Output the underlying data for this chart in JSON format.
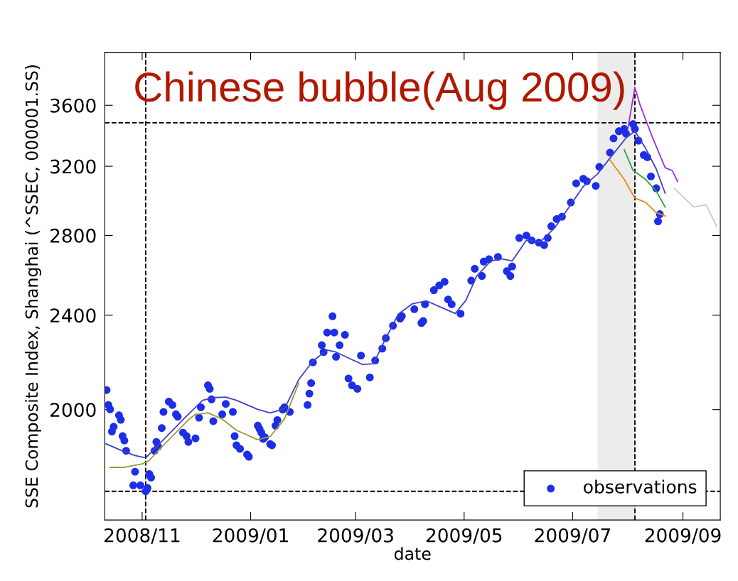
{
  "chart_data": {
    "type": "line",
    "title": "Chinese bubble(Aug 2009)",
    "xlabel": "date",
    "ylabel": "SSE Composite Index, Shanghai (^SSEC, 000001.SS)",
    "log": true,
    "legend": "bottom right",
    "xlim": [
      "2008-10-11",
      "2009-09-22"
    ],
    "xticks": [
      {
        "value": "2008-11",
        "label": "2008/11"
      },
      {
        "value": "2009-01",
        "label": "2009/01"
      },
      {
        "value": "2009-03",
        "label": "2009/03"
      },
      {
        "value": "2009-05",
        "label": "2009/05"
      },
      {
        "value": "2009-07",
        "label": "2009/07"
      },
      {
        "value": "2009-09",
        "label": "2009/09"
      }
    ],
    "ylim": [
      1616,
      3988
    ],
    "yticks": [
      2000,
      2400,
      2800,
      3200,
      3600
    ],
    "bands": [
      {
        "axis": "x",
        "from": "2009-07-15",
        "to": "2009-08-05",
        "color": "#ececec"
      }
    ],
    "ref_lines": [
      {
        "axis": "x",
        "value": "2008-11-03",
        "color": "#000000",
        "line_style": "dashed"
      },
      {
        "axis": "x",
        "value": "2009-08-05",
        "color": "#000000",
        "line_style": "dashed"
      },
      {
        "axis": "y",
        "value": 3480,
        "color": "#000000",
        "line_style": "dashed"
      },
      {
        "axis": "y",
        "value": 1708,
        "color": "#000000",
        "line_style": "dashed"
      }
    ],
    "series": [
      {
        "name": "observations",
        "type": "scatter",
        "marker": "circle",
        "color": "#1c2ee6",
        "x": [
          "2008-10-12",
          "2008-10-13",
          "2008-10-14",
          "2008-10-15",
          "2008-10-16",
          "2008-10-19",
          "2008-10-20",
          "2008-10-21",
          "2008-10-22",
          "2008-10-23",
          "2008-10-27",
          "2008-10-28",
          "2008-10-31",
          "2008-11-03",
          "2008-11-04",
          "2008-11-05",
          "2008-11-06",
          "2008-11-08",
          "2008-11-09",
          "2008-11-10",
          "2008-11-12",
          "2008-11-13",
          "2008-11-16",
          "2008-11-18",
          "2008-11-20",
          "2008-11-21",
          "2008-11-24",
          "2008-11-26",
          "2008-11-27",
          "2008-12-01",
          "2008-12-03",
          "2008-12-04",
          "2008-12-08",
          "2008-12-09",
          "2008-12-10",
          "2008-12-11",
          "2008-12-16",
          "2008-12-18",
          "2008-12-22",
          "2008-12-23",
          "2008-12-24",
          "2008-12-26",
          "2008-12-30",
          "2008-12-31",
          "2009-01-05",
          "2009-01-06",
          "2009-01-07",
          "2009-01-08",
          "2009-01-09",
          "2009-01-12",
          "2009-01-13",
          "2009-01-15",
          "2009-01-16",
          "2009-01-19",
          "2009-01-20",
          "2009-01-23",
          "2009-02-02",
          "2009-02-03",
          "2009-02-04",
          "2009-02-05",
          "2009-02-10",
          "2009-02-11",
          "2009-02-13",
          "2009-02-16",
          "2009-02-17",
          "2009-02-18",
          "2009-02-20",
          "2009-02-23",
          "2009-02-25",
          "2009-02-27",
          "2009-03-02",
          "2009-03-04",
          "2009-03-09",
          "2009-03-12",
          "2009-03-16",
          "2009-03-18",
          "2009-03-22",
          "2009-03-26",
          "2009-03-27",
          "2009-04-03",
          "2009-04-07",
          "2009-04-08",
          "2009-04-09",
          "2009-04-14",
          "2009-04-17",
          "2009-04-20",
          "2009-04-22",
          "2009-04-24",
          "2009-04-29",
          "2009-05-05",
          "2009-05-07",
          "2009-05-11",
          "2009-05-12",
          "2009-05-15",
          "2009-05-20",
          "2009-05-25",
          "2009-05-27",
          "2009-05-28",
          "2009-06-01",
          "2009-06-05",
          "2009-06-08",
          "2009-06-12",
          "2009-06-15",
          "2009-06-17",
          "2009-06-19",
          "2009-06-22",
          "2009-06-25",
          "2009-06-30",
          "2009-07-03",
          "2009-07-07",
          "2009-07-09",
          "2009-07-14",
          "2009-07-16",
          "2009-07-22",
          "2009-07-24",
          "2009-07-27",
          "2009-07-30",
          "2009-07-31",
          "2009-08-04",
          "2009-08-05",
          "2009-08-07",
          "2009-08-10",
          "2009-08-12",
          "2009-08-14",
          "2009-08-17",
          "2009-08-18",
          "2009-08-19"
        ],
        "values": [
          2077,
          2018,
          2001,
          1917,
          1935,
          1978,
          1961,
          1900,
          1884,
          1847,
          1728,
          1774,
          1728,
          1708,
          1719,
          1766,
          1754,
          1847,
          1879,
          1862,
          1930,
          1991,
          2031,
          2018,
          1982,
          1973,
          1913,
          1900,
          1879,
          1892,
          1969,
          2009,
          2096,
          2082,
          2040,
          1956,
          1982,
          2022,
          1991,
          1900,
          1867,
          1854,
          1834,
          1826,
          1939,
          1927,
          1913,
          1890,
          1896,
          1871,
          1867,
          1939,
          1960,
          2000,
          2009,
          1991,
          2018,
          2063,
          2105,
          2191,
          2265,
          2235,
          2321,
          2395,
          2321,
          2215,
          2265,
          2311,
          2124,
          2096,
          2082,
          2220,
          2128,
          2199,
          2250,
          2296,
          2352,
          2384,
          2396,
          2428,
          2364,
          2373,
          2451,
          2519,
          2542,
          2560,
          2474,
          2451,
          2407,
          2566,
          2625,
          2589,
          2662,
          2674,
          2686,
          2613,
          2589,
          2637,
          2786,
          2799,
          2773,
          2761,
          2748,
          2786,
          2850,
          2890,
          2903,
          2984,
          3096,
          3124,
          3109,
          3081,
          3196,
          3285,
          3377,
          3424,
          3439,
          3408,
          3471,
          3439,
          3362,
          3270,
          3256,
          3138,
          3067,
          2877,
          2917
        ]
      },
      {
        "color": "#4040c8",
        "x": [
          "2008-10-11",
          "2008-10-20",
          "2008-10-28",
          "2008-11-03",
          "2008-11-25",
          "2008-12-05",
          "2008-12-11",
          "2008-12-18",
          "2008-12-24",
          "2009-01-05",
          "2009-01-12",
          "2009-01-20",
          "2009-01-28",
          "2009-02-05",
          "2009-02-13",
          "2009-02-18",
          "2009-02-26",
          "2009-03-05",
          "2009-03-11",
          "2009-03-17",
          "2009-03-25",
          "2009-04-02",
          "2009-04-10",
          "2009-04-18",
          "2009-04-26",
          "2009-05-02",
          "2009-05-08",
          "2009-05-16",
          "2009-05-22",
          "2009-05-28",
          "2009-06-05",
          "2009-06-13",
          "2009-06-21",
          "2009-06-29",
          "2009-07-07",
          "2009-07-15",
          "2009-07-23",
          "2009-07-31",
          "2009-08-05",
          "2009-08-11",
          "2009-08-17",
          "2009-08-22"
        ],
        "values": [
          1874,
          1849,
          1830,
          1822,
          1969,
          2036,
          2047,
          2049,
          2036,
          2001,
          1987,
          2003,
          2119,
          2197,
          2244,
          2235,
          2206,
          2182,
          2185,
          2280,
          2405,
          2454,
          2467,
          2437,
          2408,
          2470,
          2588,
          2665,
          2676,
          2665,
          2774,
          2767,
          2842,
          2958,
          3078,
          3153,
          3265,
          3380,
          3425,
          3313,
          3183,
          3038
        ]
      },
      {
        "color": "#9a9a3c",
        "x": [
          "2008-10-14",
          "2008-10-22",
          "2008-11-01",
          "2008-11-05",
          "2008-11-11",
          "2008-11-27",
          "2008-12-01",
          "2008-12-08",
          "2008-12-16",
          "2008-12-24",
          "2009-01-05",
          "2009-01-12",
          "2009-01-20",
          "2009-01-28"
        ],
        "values": [
          1789,
          1789,
          1801,
          1813,
          1854,
          1961,
          1982,
          1987,
          1964,
          1922,
          1887,
          1899,
          1964,
          2105
        ]
      },
      {
        "color": "#2e9e40",
        "x": [
          "2009-07-30",
          "2009-08-04",
          "2009-08-11",
          "2009-08-17",
          "2009-08-22"
        ],
        "values": [
          3304,
          3174,
          3120,
          3050,
          2958
        ]
      },
      {
        "color": "#e08c10",
        "x": [
          "2009-07-22",
          "2009-07-30",
          "2009-08-05",
          "2009-08-11",
          "2009-08-17",
          "2009-08-22"
        ],
        "values": [
          3239,
          3120,
          3009,
          2985,
          2926,
          2907
        ]
      },
      {
        "color": "#9b30d0",
        "x": [
          "2009-08-01",
          "2009-08-05",
          "2009-08-08",
          "2009-08-15",
          "2009-08-22",
          "2009-08-26",
          "2009-08-29"
        ],
        "values": [
          3439,
          3726,
          3599,
          3380,
          3191,
          3174,
          3107
        ]
      },
      {
        "color": "#c8c8c8",
        "x": [
          "2009-08-27",
          "2009-09-07",
          "2009-09-14",
          "2009-09-20"
        ],
        "values": [
          3067,
          2958,
          2970,
          2849
        ]
      }
    ]
  }
}
